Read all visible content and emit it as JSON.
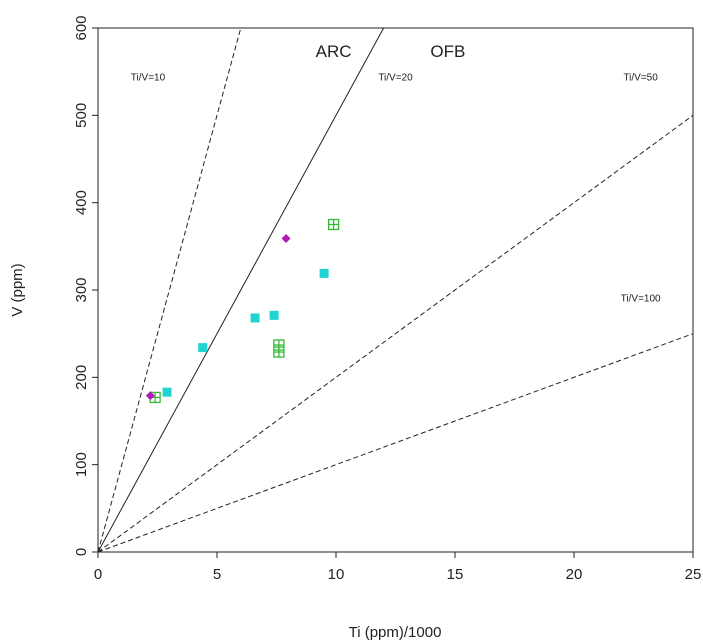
{
  "chart_data": {
    "type": "scatter",
    "xlabel": "Ti (ppm)/1000",
    "ylabel": "V (ppm)",
    "xlim": [
      0,
      25
    ],
    "ylim": [
      0,
      600
    ],
    "x_ticks": [
      0,
      5,
      10,
      15,
      20,
      25
    ],
    "y_ticks": [
      0,
      100,
      200,
      300,
      400,
      500,
      600
    ],
    "grid": false,
    "reference_lines": [
      {
        "label": "Ti/V=10",
        "ratio": 10,
        "style": "dashed",
        "label_at": [
          2.1,
          540
        ]
      },
      {
        "label": "Ti/V=20",
        "ratio": 20,
        "style": "solid",
        "label_at": [
          12.5,
          540
        ]
      },
      {
        "label": "Ti/V=50",
        "ratio": 50,
        "style": "dashed",
        "label_at": [
          22.8,
          540
        ]
      },
      {
        "label": "Ti/V=100",
        "ratio": 100,
        "style": "dashed",
        "label_at": [
          22.8,
          287
        ]
      }
    ],
    "field_labels": [
      {
        "text": "ARC",
        "at": [
          9.9,
          567
        ]
      },
      {
        "text": "OFB",
        "at": [
          14.7,
          567
        ]
      }
    ],
    "series": [
      {
        "marker": "square",
        "color": "#22d3d3",
        "points": [
          [
            2.9,
            183
          ],
          [
            4.4,
            234
          ],
          [
            6.6,
            268
          ],
          [
            7.4,
            271
          ],
          [
            9.5,
            319
          ]
        ]
      },
      {
        "marker": "boxed-plus",
        "color": "#33bb33",
        "points": [
          [
            2.4,
            177
          ],
          [
            7.6,
            229
          ],
          [
            7.6,
            237
          ],
          [
            9.9,
            375
          ]
        ]
      },
      {
        "marker": "diamond",
        "color": "#b31ab3",
        "points": [
          [
            2.2,
            179
          ],
          [
            7.9,
            359
          ]
        ]
      }
    ]
  }
}
